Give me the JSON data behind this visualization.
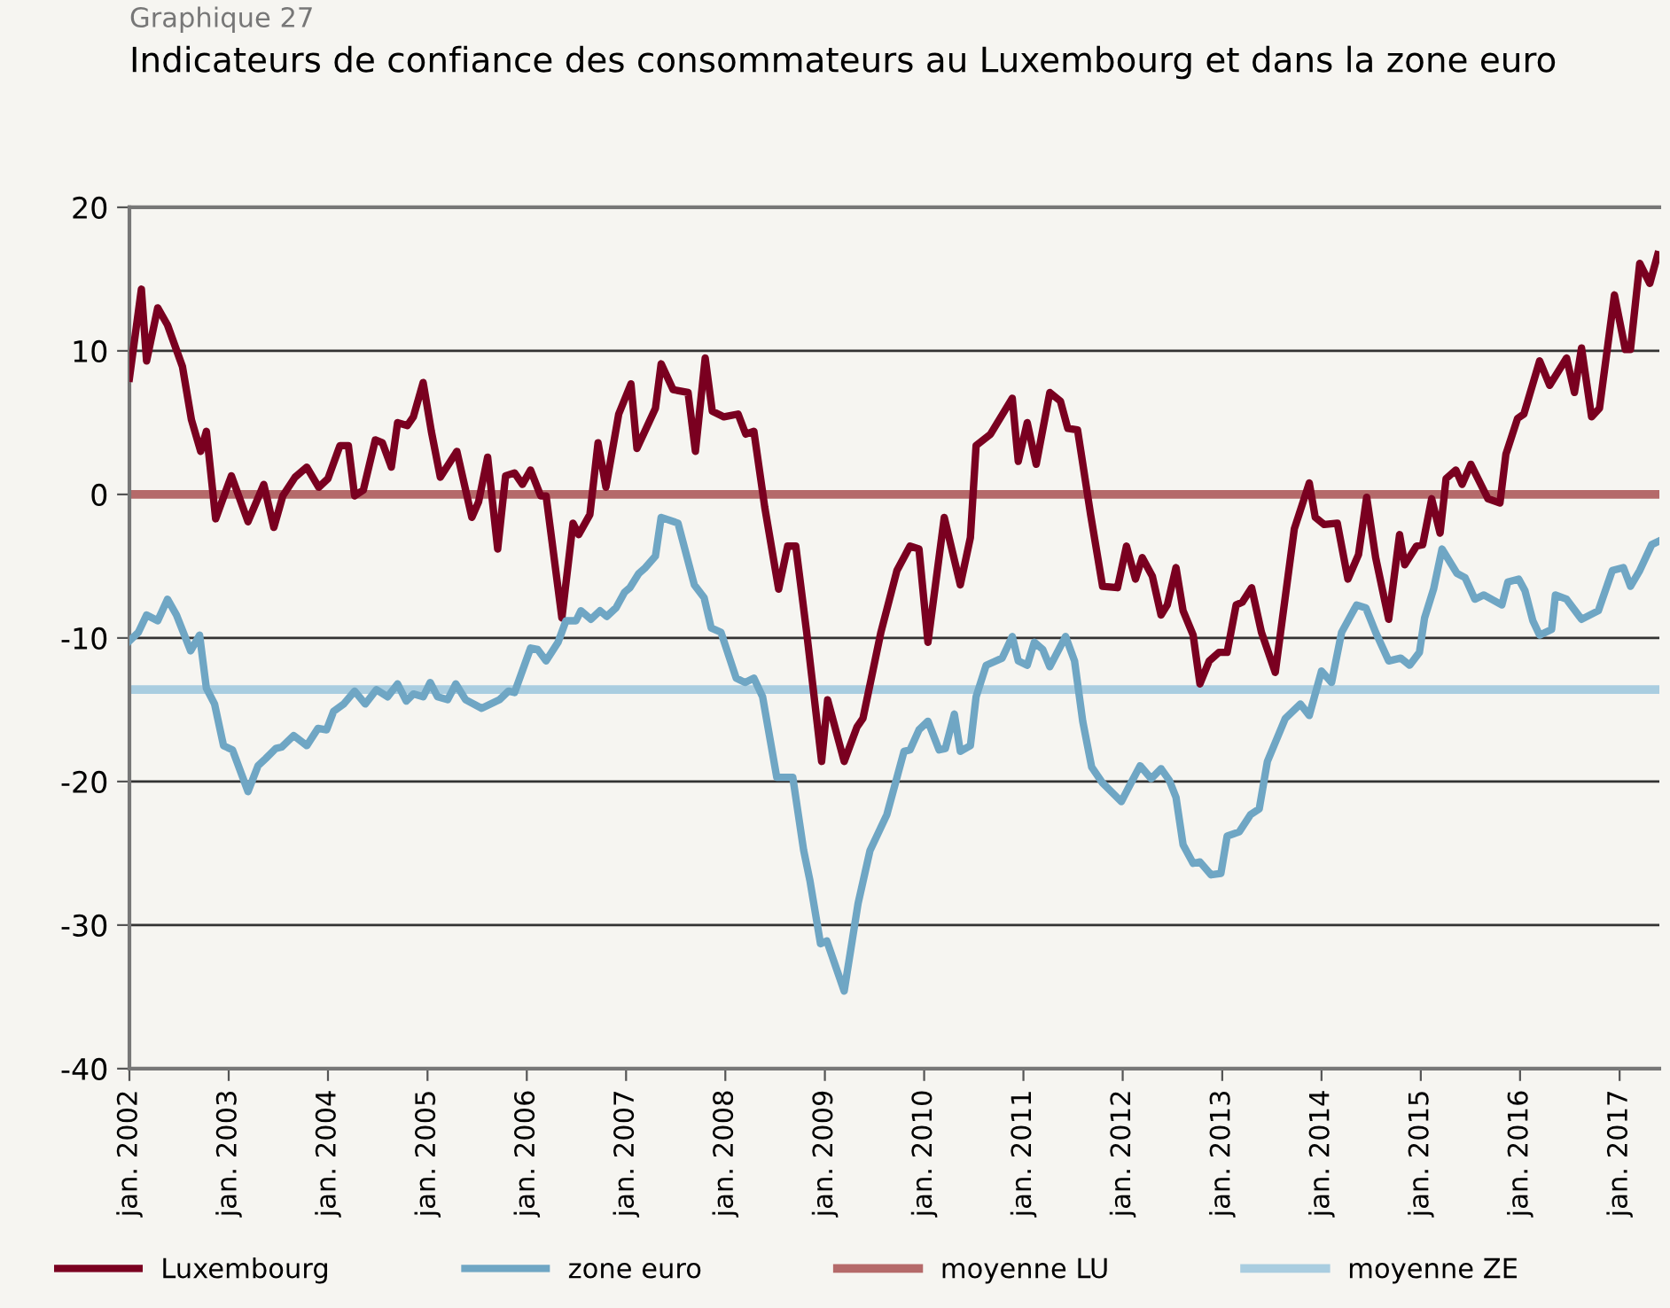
{
  "chart_data": {
    "type": "line",
    "title": "Indicateurs de confiance des consommateurs au Luxembourg et dans la zone euro",
    "annotations": [
      "Graphique 27"
    ],
    "series": [
      {
        "name": "Luxembourg",
        "color": "#7a0020",
        "x": [
          "2002-01-01",
          "2002-02-14",
          "2002-03-05",
          "2002-04-15",
          "2002-05-21",
          "2002-07-15",
          "2002-08-17",
          "2002-09-20",
          "2002-10-11",
          "2002-11-14",
          "2003-01-11",
          "2003-03-13",
          "2003-05-10",
          "2003-06-16",
          "2003-07-19",
          "2003-09-02",
          "2003-10-15",
          "2003-11-28",
          "2004-01-01",
          "2004-02-14",
          "2004-03-16",
          "2004-04-08",
          "2004-05-10",
          "2004-06-23",
          "2004-07-19",
          "2004-08-21",
          "2004-09-13",
          "2004-10-19",
          "2004-11-10",
          "2004-12-16",
          "2005-01-15",
          "2005-02-17",
          "2005-04-19",
          "2005-06-13",
          "2005-07-08",
          "2005-08-10",
          "2005-09-16",
          "2005-10-15",
          "2005-11-17",
          "2005-12-16",
          "2006-01-15",
          "2006-02-21",
          "2006-03-13",
          "2006-05-10",
          "2006-06-20",
          "2006-07-11",
          "2006-08-21",
          "2006-09-20",
          "2006-10-19",
          "2006-12-05",
          "2007-01-19",
          "2007-02-10",
          "2007-04-19",
          "2007-05-10",
          "2007-06-23",
          "2007-08-17",
          "2007-09-13",
          "2007-10-19",
          "2007-11-14",
          "2007-12-27",
          "2008-02-17",
          "2008-03-16",
          "2008-04-15",
          "2008-05-25",
          "2008-07-15",
          "2008-08-17",
          "2008-09-16",
          "2008-10-26",
          "2008-12-20",
          "2009-01-11",
          "2009-03-13",
          "2009-04-29",
          "2009-05-21",
          "2009-07-26",
          "2009-09-23",
          "2009-11-10",
          "2009-12-13",
          "2010-01-15",
          "2010-03-16",
          "2010-05-14",
          "2010-06-20",
          "2010-07-11",
          "2010-09-02",
          "2010-11-21",
          "2010-12-13",
          "2011-01-15",
          "2011-02-17",
          "2011-04-08",
          "2011-05-17",
          "2011-06-13",
          "2011-07-19",
          "2011-09-05",
          "2011-10-19",
          "2011-12-13",
          "2012-01-15",
          "2012-02-17",
          "2012-03-13",
          "2012-04-19",
          "2012-05-21",
          "2012-06-13",
          "2012-07-15",
          "2012-08-10",
          "2012-09-16",
          "2012-10-11",
          "2012-11-14",
          "2012-12-20",
          "2013-01-19",
          "2013-02-21",
          "2013-03-16",
          "2013-04-19",
          "2013-05-25",
          "2013-07-15",
          "2013-09-23",
          "2013-11-17",
          "2013-12-09",
          "2014-01-11",
          "2014-02-28",
          "2014-04-08",
          "2014-05-17",
          "2014-06-16",
          "2014-07-19",
          "2014-09-05",
          "2014-10-15",
          "2014-11-03",
          "2014-12-16",
          "2015-01-08",
          "2015-02-10",
          "2015-03-13",
          "2015-04-04",
          "2015-05-10",
          "2015-06-02",
          "2015-07-04",
          "2015-09-05",
          "2015-10-19",
          "2015-11-10",
          "2015-12-23",
          "2016-01-15",
          "2016-03-13",
          "2016-04-19",
          "2016-06-20",
          "2016-07-19",
          "2016-08-14",
          "2016-09-20",
          "2016-10-19",
          "2016-12-13",
          "2017-01-22",
          "2017-02-10",
          "2017-03-16",
          "2017-04-22",
          "2017-05-21"
        ],
        "values": [
          8.1,
          14.3,
          9.3,
          13.0,
          11.8,
          8.9,
          5.2,
          3.0,
          4.4,
          -1.7,
          1.3,
          -1.9,
          0.7,
          -2.3,
          -0.1,
          1.2,
          1.9,
          0.5,
          1.1,
          3.4,
          3.4,
          -0.1,
          0.3,
          3.8,
          3.6,
          1.9,
          5.0,
          4.8,
          5.4,
          7.8,
          4.4,
          1.2,
          3.0,
          -1.6,
          -0.5,
          2.6,
          -3.8,
          1.3,
          1.5,
          0.7,
          1.7,
          -0.1,
          -0.1,
          -8.6,
          -2.0,
          -2.8,
          -1.4,
          3.6,
          0.5,
          5.6,
          7.7,
          3.2,
          6.0,
          9.1,
          7.3,
          7.1,
          3.0,
          9.5,
          5.8,
          5.4,
          5.6,
          4.2,
          4.4,
          -0.9,
          -6.6,
          -3.6,
          -3.6,
          -9.6,
          -18.6,
          -14.3,
          -18.6,
          -16.2,
          -15.6,
          -9.6,
          -5.3,
          -3.6,
          -3.8,
          -10.3,
          -1.6,
          -6.3,
          -3.0,
          3.4,
          4.2,
          6.7,
          2.3,
          5.0,
          2.1,
          7.1,
          6.5,
          4.6,
          4.5,
          -1.4,
          -6.4,
          -6.5,
          -3.6,
          -5.9,
          -4.4,
          -5.7,
          -8.4,
          -7.7,
          -5.1,
          -8.1,
          -9.8,
          -13.2,
          -11.6,
          -11.0,
          -11.0,
          -7.7,
          -7.5,
          -6.5,
          -9.6,
          -12.4,
          -2.4,
          0.8,
          -1.6,
          -2.1,
          -2.0,
          -5.9,
          -4.2,
          -0.2,
          -4.4,
          -8.7,
          -2.8,
          -4.9,
          -3.6,
          -3.5,
          -0.3,
          -2.7,
          1.1,
          1.7,
          0.7,
          2.1,
          -0.3,
          -0.6,
          2.8,
          5.3,
          5.6,
          9.3,
          7.6,
          9.5,
          7.1,
          10.2,
          5.4,
          6.0,
          13.9,
          10.1,
          10.1,
          16.1,
          14.7,
          16.7
        ]
      },
      {
        "name": "zone euro",
        "color": "#6fa6c4",
        "x": [
          "2002-01-01",
          "2002-02-03",
          "2002-03-05",
          "2002-04-15",
          "2002-05-21",
          "2002-06-23",
          "2002-08-14",
          "2002-09-16",
          "2002-10-11",
          "2002-11-10",
          "2002-12-13",
          "2003-01-15",
          "2003-03-13",
          "2003-04-19",
          "2003-05-17",
          "2003-06-23",
          "2003-07-15",
          "2003-08-28",
          "2003-10-15",
          "2003-11-25",
          "2003-12-27",
          "2004-01-22",
          "2004-02-28",
          "2004-04-08",
          "2004-05-17",
          "2004-06-27",
          "2004-08-07",
          "2004-09-13",
          "2004-10-15",
          "2004-11-10",
          "2004-12-16",
          "2005-01-11",
          "2005-02-07",
          "2005-03-16",
          "2005-04-15",
          "2005-05-21",
          "2005-07-19",
          "2005-09-23",
          "2005-10-26",
          "2005-11-17",
          "2006-01-15",
          "2006-02-10",
          "2006-03-13",
          "2006-04-26",
          "2006-05-25",
          "2006-07-01",
          "2006-07-19",
          "2006-08-25",
          "2006-09-27",
          "2006-10-22",
          "2006-11-25",
          "2006-12-27",
          "2007-01-15",
          "2007-02-17",
          "2007-03-13",
          "2007-04-19",
          "2007-05-10",
          "2007-07-11",
          "2007-09-09",
          "2007-10-15",
          "2007-11-10",
          "2007-12-16",
          "2008-02-10",
          "2008-03-13",
          "2008-04-15",
          "2008-05-17",
          "2008-07-08",
          "2008-09-05",
          "2008-10-15",
          "2008-11-07",
          "2008-12-16",
          "2009-01-08",
          "2009-03-13",
          "2009-05-03",
          "2009-06-16",
          "2009-08-17",
          "2009-10-19",
          "2009-11-10",
          "2009-12-13",
          "2010-01-15",
          "2010-02-25",
          "2010-03-20",
          "2010-04-22",
          "2010-05-14",
          "2010-06-20",
          "2010-07-11",
          "2010-08-17",
          "2010-10-15",
          "2010-11-21",
          "2010-12-13",
          "2011-01-15",
          "2011-02-10",
          "2011-03-13",
          "2011-04-08",
          "2011-06-05",
          "2011-07-08",
          "2011-08-07",
          "2011-09-09",
          "2011-10-19",
          "2011-12-27",
          "2012-01-26",
          "2012-03-05",
          "2012-04-15",
          "2012-05-21",
          "2012-06-20",
          "2012-07-15",
          "2012-08-10",
          "2012-09-16",
          "2012-10-11",
          "2012-11-21",
          "2012-12-27",
          "2013-01-19",
          "2013-03-05",
          "2013-04-15",
          "2013-05-17",
          "2013-06-16",
          "2013-08-21",
          "2013-10-15",
          "2013-11-17",
          "2014-01-01",
          "2014-02-07",
          "2014-03-16",
          "2014-05-10",
          "2014-06-13",
          "2014-07-19",
          "2014-09-05",
          "2014-10-19",
          "2014-11-21",
          "2014-12-27",
          "2015-01-15",
          "2015-02-17",
          "2015-03-20",
          "2015-05-14",
          "2015-06-13",
          "2015-07-19",
          "2015-08-21",
          "2015-10-26",
          "2015-11-17",
          "2015-12-27",
          "2016-01-19",
          "2016-02-17",
          "2016-03-13",
          "2016-04-26",
          "2016-05-10",
          "2016-06-20",
          "2016-08-14",
          "2016-10-15",
          "2016-12-05",
          "2017-01-15",
          "2017-02-10",
          "2017-03-16",
          "2017-04-29",
          "2017-05-21"
        ],
        "values": [
          -10.2,
          -9.6,
          -8.4,
          -8.8,
          -7.3,
          -8.4,
          -10.9,
          -9.8,
          -13.5,
          -14.6,
          -17.5,
          -17.8,
          -20.7,
          -18.9,
          -18.4,
          -17.7,
          -17.6,
          -16.8,
          -17.5,
          -16.3,
          -16.4,
          -15.1,
          -14.6,
          -13.7,
          -14.6,
          -13.6,
          -14.1,
          -13.2,
          -14.4,
          -13.9,
          -14.1,
          -13.1,
          -14.1,
          -14.3,
          -13.2,
          -14.3,
          -14.9,
          -14.3,
          -13.7,
          -13.8,
          -10.7,
          -10.8,
          -11.6,
          -10.3,
          -8.8,
          -8.8,
          -8.1,
          -8.7,
          -8.1,
          -8.5,
          -7.9,
          -6.8,
          -6.5,
          -5.5,
          -5.1,
          -4.3,
          -1.6,
          -2.0,
          -6.3,
          -7.2,
          -9.3,
          -9.6,
          -12.8,
          -13.1,
          -12.8,
          -14.1,
          -19.7,
          -19.7,
          -24.8,
          -26.9,
          -31.3,
          -31.1,
          -34.6,
          -28.5,
          -24.8,
          -22.3,
          -17.9,
          -17.8,
          -16.4,
          -15.8,
          -17.8,
          -17.7,
          -15.3,
          -17.9,
          -17.5,
          -14.1,
          -11.9,
          -11.4,
          -9.9,
          -11.6,
          -11.9,
          -10.3,
          -10.8,
          -12.0,
          -9.9,
          -11.6,
          -15.8,
          -19.0,
          -20.1,
          -21.4,
          -20.3,
          -18.9,
          -19.8,
          -19.1,
          -19.9,
          -21.1,
          -24.4,
          -25.7,
          -25.6,
          -26.5,
          -26.4,
          -23.8,
          -23.5,
          -22.3,
          -21.9,
          -18.6,
          -15.6,
          -14.6,
          -15.4,
          -12.3,
          -13.1,
          -9.6,
          -7.7,
          -7.9,
          -9.6,
          -11.6,
          -11.4,
          -11.9,
          -11.0,
          -8.6,
          -6.6,
          -3.8,
          -5.5,
          -5.8,
          -7.3,
          -7.0,
          -7.7,
          -6.1,
          -5.9,
          -6.7,
          -8.8,
          -9.8,
          -9.4,
          -7.0,
          -7.3,
          -8.7,
          -8.1,
          -5.3,
          -5.1,
          -6.4,
          -5.3,
          -3.5,
          -3.3
        ]
      }
    ],
    "ref_lines": [
      {
        "axis": "y",
        "value": 0,
        "label": "moyenne LU",
        "color": "#b56a6a"
      },
      {
        "axis": "y",
        "value": -13.6,
        "label": "moyenne ZE",
        "color": "#a9cde0"
      }
    ],
    "xlim": [
      "2002-01-01",
      "2017-05-27"
    ],
    "xticks": [
      {
        "value": "2002-01-01",
        "label": "jan. 2002"
      },
      {
        "value": "2003-01-01",
        "label": "jan. 2003"
      },
      {
        "value": "2004-01-01",
        "label": "jan. 2004"
      },
      {
        "value": "2005-01-01",
        "label": "jan. 2005"
      },
      {
        "value": "2006-01-01",
        "label": "jan. 2006"
      },
      {
        "value": "2007-01-01",
        "label": "jan. 2007"
      },
      {
        "value": "2008-01-01",
        "label": "jan. 2008"
      },
      {
        "value": "2009-01-01",
        "label": "jan. 2009"
      },
      {
        "value": "2010-01-01",
        "label": "jan. 2010"
      },
      {
        "value": "2011-01-01",
        "label": "jan. 2011"
      },
      {
        "value": "2012-01-01",
        "label": "jan. 2012"
      },
      {
        "value": "2013-01-01",
        "label": "jan. 2013"
      },
      {
        "value": "2014-01-01",
        "label": "jan. 2014"
      },
      {
        "value": "2015-01-01",
        "label": "jan. 2015"
      },
      {
        "value": "2016-01-01",
        "label": "jan. 2016"
      },
      {
        "value": "2017-01-01",
        "label": "jan. 2017"
      }
    ],
    "ylim": [
      -40,
      20
    ],
    "yticks": [
      -40,
      -30,
      -20,
      -10,
      0,
      10,
      20
    ],
    "grid": "y",
    "legend": "bottom",
    "marker": "none",
    "line_style": "solid"
  }
}
